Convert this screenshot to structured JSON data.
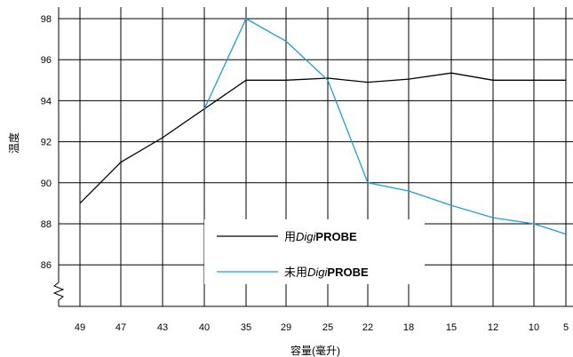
{
  "chart_data": {
    "type": "line",
    "title": "",
    "xlabel": "容量(毫升)",
    "ylabel": "温度",
    "categories": [
      "49",
      "47",
      "43",
      "40",
      "35",
      "29",
      "25",
      "22",
      "18",
      "15",
      "12",
      "10",
      "5"
    ],
    "ylim": [
      84,
      98
    ],
    "yticks": [
      86,
      88,
      90,
      92,
      94,
      96,
      98
    ],
    "grid": true,
    "legend_position": "bottom-center",
    "series": [
      {
        "name_parts": [
          "用",
          "Digi",
          "PROBE"
        ],
        "color": "#000000",
        "values": [
          89.0,
          91.0,
          92.2,
          93.6,
          95.0,
          95.0,
          95.1,
          94.9,
          95.05,
          95.35,
          95.0,
          95.0,
          95.0
        ]
      },
      {
        "name_parts": [
          "未用",
          "Digi",
          "PROBE"
        ],
        "color": "#1aa0d4",
        "values": [
          null,
          null,
          null,
          93.6,
          98.0,
          96.9,
          95.0,
          90.0,
          89.6,
          88.9,
          88.3,
          88.0,
          87.5
        ]
      }
    ]
  }
}
